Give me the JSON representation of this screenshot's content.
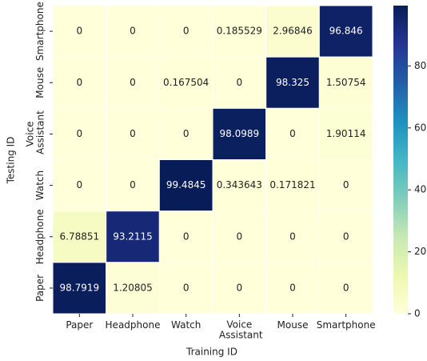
{
  "chart_data": {
    "type": "heatmap",
    "xlabel": "Training ID",
    "ylabel": "Testing ID",
    "x_categories": [
      "Paper",
      "Headphone",
      "Watch",
      "Voice Assistant",
      "Mouse",
      "Smartphone"
    ],
    "y_categories": [
      "Smartphone",
      "Mouse",
      "Voice Assistant",
      "Watch",
      "Headphone",
      "Paper"
    ],
    "values": [
      [
        0,
        0,
        0,
        0.185529,
        2.96846,
        96.846
      ],
      [
        0,
        0,
        0.167504,
        0,
        98.325,
        1.50754
      ],
      [
        0,
        0,
        0,
        98.0989,
        0,
        1.90114
      ],
      [
        0,
        0,
        99.4845,
        0.343643,
        0.171821,
        0
      ],
      [
        6.78851,
        93.2115,
        0,
        0,
        0,
        0
      ],
      [
        98.7919,
        1.20805,
        0,
        0,
        0,
        0
      ]
    ],
    "colormap": [
      "#ffffd9",
      "#edf8b1",
      "#c7e9b4",
      "#7fcdbb",
      "#41b6c4",
      "#1d91c0",
      "#225ea8",
      "#253494",
      "#081d58"
    ],
    "colorbar": {
      "lim": [
        0,
        99.4845
      ],
      "ticks": [
        0,
        20,
        40,
        60,
        80
      ]
    }
  }
}
